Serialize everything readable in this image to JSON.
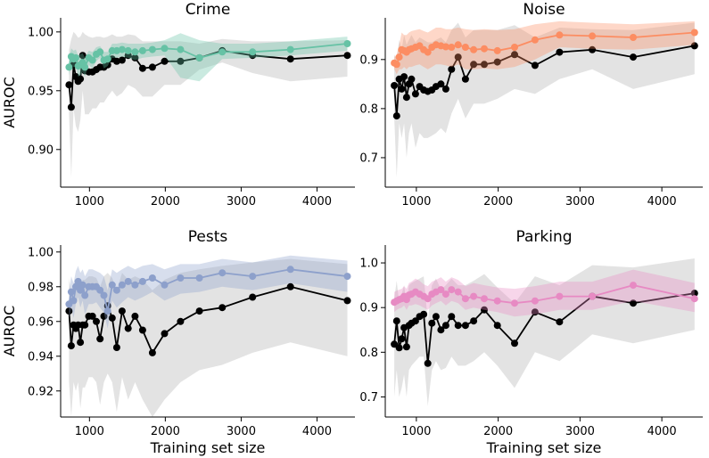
{
  "chart_data": [
    {
      "type": "line",
      "title": "Crime",
      "xlabel": "",
      "ylabel": "AUROC",
      "xlim": [
        620,
        4500
      ],
      "ylim": [
        0.868,
        1.012
      ],
      "xticks": [
        1000,
        2000,
        3000,
        4000
      ],
      "yticks": [
        0.9,
        0.95,
        1.0
      ],
      "ytick_labels": [
        "0.90",
        "0.95",
        "1.00"
      ],
      "color": "#66c2a5",
      "x": [
        730,
        760,
        790,
        820,
        850,
        880,
        910,
        940,
        990,
        1040,
        1090,
        1140,
        1190,
        1240,
        1300,
        1360,
        1430,
        1510,
        1600,
        1700,
        1830,
        1990,
        2200,
        2450,
        2750,
        3150,
        3650,
        4400
      ],
      "series": [
        {
          "values": [
            0.97,
            0.979,
            0.977,
            0.978,
            0.971,
            0.972,
            0.974,
            0.97,
            0.978,
            0.976,
            0.981,
            0.983,
            0.976,
            0.977,
            0.984,
            0.984,
            0.985,
            0.984,
            0.983,
            0.984,
            0.985,
            0.986,
            0.985,
            0.978,
            0.983,
            0.983,
            0.985,
            0.99
          ],
          "lower": [
            0.963,
            0.972,
            0.97,
            0.971,
            0.962,
            0.963,
            0.966,
            0.962,
            0.972,
            0.969,
            0.975,
            0.978,
            0.969,
            0.971,
            0.978,
            0.978,
            0.979,
            0.978,
            0.976,
            0.978,
            0.979,
            0.98,
            0.961,
            0.958,
            0.977,
            0.978,
            0.98,
            0.984
          ],
          "upper": [
            0.978,
            0.986,
            0.984,
            0.985,
            0.98,
            0.981,
            0.982,
            0.978,
            0.984,
            0.983,
            0.987,
            0.988,
            0.983,
            0.983,
            0.99,
            0.99,
            0.991,
            0.99,
            0.99,
            0.99,
            0.991,
            0.993,
            0.999,
            0.993,
            0.99,
            0.99,
            0.992,
            0.996
          ]
        },
        {
          "values": [
            0.955,
            0.936,
            0.972,
            0.962,
            0.958,
            0.96,
            0.98,
            0.967,
            0.966,
            0.966,
            0.968,
            0.97,
            0.97,
            0.972,
            0.977,
            0.975,
            0.976,
            0.98,
            0.978,
            0.969,
            0.97,
            0.975,
            0.975,
            0.978,
            0.984,
            0.98,
            0.977,
            0.98
          ],
          "lower": [
            0.93,
            0.876,
            0.935,
            0.92,
            0.915,
            0.925,
            0.95,
            0.93,
            0.93,
            0.935,
            0.935,
            0.94,
            0.94,
            0.945,
            0.95,
            0.945,
            0.948,
            0.955,
            0.952,
            0.945,
            0.945,
            0.955,
            0.955,
            0.968,
            0.974,
            0.965,
            0.958,
            0.962
          ],
          "upper": [
            0.985,
            0.994,
            1.0,
            0.998,
            0.995,
            0.996,
            1.0,
            0.998,
            0.996,
            0.995,
            0.996,
            0.996,
            0.995,
            0.996,
            0.998,
            0.996,
            0.996,
            0.998,
            0.997,
            0.992,
            0.992,
            0.992,
            0.992,
            0.99,
            0.994,
            0.992,
            0.992,
            0.993
          ]
        }
      ]
    },
    {
      "type": "line",
      "title": "Noise",
      "xlabel": "",
      "ylabel": "",
      "xlim": [
        620,
        4500
      ],
      "ylim": [
        0.64,
        0.985
      ],
      "xticks": [
        1000,
        2000,
        3000,
        4000
      ],
      "yticks": [
        0.7,
        0.8,
        0.9
      ],
      "ytick_labels": [
        "0.7",
        "0.8",
        "0.9"
      ],
      "color": "#fc8d62",
      "x": [
        730,
        760,
        790,
        820,
        850,
        880,
        910,
        940,
        990,
        1040,
        1090,
        1140,
        1190,
        1240,
        1300,
        1360,
        1430,
        1510,
        1600,
        1700,
        1830,
        1990,
        2200,
        2450,
        2750,
        3150,
        3650,
        4400
      ],
      "series": [
        {
          "values": [
            0.893,
            0.89,
            0.905,
            0.92,
            0.918,
            0.915,
            0.92,
            0.922,
            0.925,
            0.928,
            0.92,
            0.915,
            0.925,
            0.93,
            0.928,
            0.926,
            0.925,
            0.93,
            0.925,
            0.92,
            0.922,
            0.918,
            0.925,
            0.94,
            0.95,
            0.948,
            0.945,
            0.955
          ],
          "lower": [
            0.88,
            0.87,
            0.88,
            0.88,
            0.885,
            0.88,
            0.885,
            0.885,
            0.888,
            0.89,
            0.885,
            0.88,
            0.885,
            0.89,
            0.89,
            0.888,
            0.885,
            0.89,
            0.88,
            0.88,
            0.882,
            0.88,
            0.885,
            0.9,
            0.925,
            0.922,
            0.92,
            0.93
          ],
          "upper": [
            0.905,
            0.91,
            0.93,
            0.955,
            0.95,
            0.95,
            0.955,
            0.958,
            0.96,
            0.962,
            0.958,
            0.955,
            0.96,
            0.965,
            0.965,
            0.962,
            0.962,
            0.965,
            0.962,
            0.96,
            0.962,
            0.96,
            0.962,
            0.972,
            0.978,
            0.975,
            0.972,
            0.978
          ]
        },
        {
          "values": [
            0.847,
            0.785,
            0.86,
            0.84,
            0.865,
            0.823,
            0.85,
            0.86,
            0.83,
            0.845,
            0.838,
            0.835,
            0.838,
            0.845,
            0.85,
            0.84,
            0.88,
            0.905,
            0.86,
            0.89,
            0.89,
            0.895,
            0.91,
            0.888,
            0.915,
            0.92,
            0.905,
            0.928
          ],
          "lower": [
            0.78,
            0.66,
            0.77,
            0.74,
            0.77,
            0.7,
            0.75,
            0.77,
            0.72,
            0.75,
            0.74,
            0.74,
            0.745,
            0.75,
            0.76,
            0.75,
            0.79,
            0.82,
            0.78,
            0.81,
            0.81,
            0.82,
            0.84,
            0.83,
            0.86,
            0.88,
            0.84,
            0.87
          ],
          "upper": [
            0.91,
            0.9,
            0.94,
            0.92,
            0.95,
            0.93,
            0.94,
            0.95,
            0.935,
            0.945,
            0.94,
            0.935,
            0.935,
            0.94,
            0.945,
            0.935,
            0.96,
            0.975,
            0.945,
            0.96,
            0.96,
            0.96,
            0.97,
            0.945,
            0.965,
            0.962,
            0.96,
            0.975
          ]
        }
      ]
    },
    {
      "type": "line",
      "title": "Pests",
      "xlabel": "Training set size",
      "ylabel": "AUROC",
      "xlim": [
        620,
        4500
      ],
      "ylim": [
        0.905,
        1.004
      ],
      "xticks": [
        1000,
        2000,
        3000,
        4000
      ],
      "yticks": [
        0.92,
        0.94,
        0.96,
        0.98,
        1.0
      ],
      "ytick_labels": [
        "0.92",
        "0.94",
        "0.96",
        "0.98",
        "1.00"
      ],
      "color": "#8da0cb",
      "x": [
        730,
        760,
        790,
        820,
        850,
        880,
        910,
        940,
        990,
        1040,
        1090,
        1140,
        1190,
        1240,
        1300,
        1360,
        1430,
        1510,
        1600,
        1700,
        1830,
        1990,
        2200,
        2450,
        2750,
        3150,
        3650,
        4400
      ],
      "series": [
        {
          "values": [
            0.97,
            0.977,
            0.972,
            0.98,
            0.983,
            0.978,
            0.981,
            0.975,
            0.98,
            0.98,
            0.98,
            0.978,
            0.975,
            0.966,
            0.981,
            0.978,
            0.981,
            0.983,
            0.981,
            0.983,
            0.985,
            0.981,
            0.985,
            0.985,
            0.988,
            0.986,
            0.99,
            0.986
          ],
          "lower": [
            0.962,
            0.968,
            0.962,
            0.97,
            0.974,
            0.968,
            0.972,
            0.964,
            0.97,
            0.97,
            0.971,
            0.968,
            0.965,
            0.956,
            0.972,
            0.968,
            0.971,
            0.974,
            0.972,
            0.974,
            0.977,
            0.972,
            0.976,
            0.977,
            0.98,
            0.978,
            0.982,
            0.977
          ],
          "upper": [
            0.978,
            0.986,
            0.982,
            0.989,
            0.992,
            0.988,
            0.99,
            0.986,
            0.99,
            0.99,
            0.989,
            0.988,
            0.986,
            0.978,
            0.99,
            0.988,
            0.99,
            0.992,
            0.99,
            0.992,
            0.993,
            0.99,
            0.993,
            0.993,
            0.996,
            0.994,
            0.998,
            0.995
          ]
        },
        {
          "values": [
            0.966,
            0.946,
            0.958,
            0.956,
            0.958,
            0.948,
            0.958,
            0.958,
            0.963,
            0.963,
            0.96,
            0.95,
            0.963,
            0.969,
            0.962,
            0.945,
            0.966,
            0.956,
            0.963,
            0.955,
            0.942,
            0.953,
            0.96,
            0.966,
            0.968,
            0.974,
            0.98,
            0.972
          ],
          "lower": [
            0.925,
            0.905,
            0.925,
            0.92,
            0.925,
            0.91,
            0.922,
            0.922,
            0.928,
            0.928,
            0.925,
            0.912,
            0.925,
            0.93,
            0.925,
            0.908,
            0.928,
            0.915,
            0.925,
            0.915,
            0.905,
            0.915,
            0.925,
            0.932,
            0.935,
            0.942,
            0.948,
            0.94
          ],
          "upper": [
            0.985,
            0.975,
            0.982,
            0.982,
            0.984,
            0.978,
            0.984,
            0.984,
            0.986,
            0.986,
            0.985,
            0.98,
            0.986,
            0.988,
            0.985,
            0.978,
            0.988,
            0.984,
            0.986,
            0.984,
            0.978,
            0.984,
            0.988,
            0.99,
            0.992,
            0.994,
            0.996,
            0.993
          ]
        }
      ]
    },
    {
      "type": "line",
      "title": "Parking",
      "xlabel": "Training set size",
      "ylabel": "",
      "xlim": [
        620,
        4500
      ],
      "ylim": [
        0.655,
        1.04
      ],
      "xticks": [
        1000,
        2000,
        3000,
        4000
      ],
      "yticks": [
        0.7,
        0.8,
        0.9,
        1.0
      ],
      "ytick_labels": [
        "0.7",
        "0.8",
        "0.9",
        "1.0"
      ],
      "color": "#e78ac3",
      "x": [
        730,
        760,
        790,
        820,
        850,
        880,
        910,
        940,
        990,
        1040,
        1090,
        1140,
        1190,
        1240,
        1300,
        1360,
        1430,
        1510,
        1600,
        1700,
        1830,
        1990,
        2200,
        2450,
        2750,
        3150,
        3650,
        4400
      ],
      "series": [
        {
          "values": [
            0.912,
            0.915,
            0.918,
            0.92,
            0.925,
            0.918,
            0.928,
            0.93,
            0.935,
            0.93,
            0.925,
            0.92,
            0.93,
            0.935,
            0.94,
            0.93,
            0.94,
            0.935,
            0.92,
            0.925,
            0.92,
            0.915,
            0.91,
            0.915,
            0.925,
            0.925,
            0.95,
            0.92
          ],
          "lower": [
            0.89,
            0.895,
            0.898,
            0.9,
            0.905,
            0.895,
            0.905,
            0.905,
            0.908,
            0.905,
            0.9,
            0.895,
            0.905,
            0.91,
            0.915,
            0.905,
            0.915,
            0.91,
            0.895,
            0.9,
            0.895,
            0.89,
            0.88,
            0.885,
            0.895,
            0.895,
            0.915,
            0.89
          ],
          "upper": [
            0.935,
            0.938,
            0.94,
            0.942,
            0.948,
            0.942,
            0.955,
            0.958,
            0.965,
            0.96,
            0.952,
            0.948,
            0.958,
            0.962,
            0.968,
            0.958,
            0.968,
            0.962,
            0.948,
            0.955,
            0.95,
            0.945,
            0.942,
            0.948,
            0.958,
            0.958,
            0.985,
            0.955
          ]
        },
        {
          "values": [
            0.818,
            0.87,
            0.81,
            0.83,
            0.855,
            0.812,
            0.86,
            0.865,
            0.87,
            0.88,
            0.885,
            0.775,
            0.865,
            0.88,
            0.85,
            0.86,
            0.88,
            0.86,
            0.86,
            0.87,
            0.895,
            0.86,
            0.82,
            0.89,
            0.868,
            0.925,
            0.91,
            0.932
          ],
          "lower": [
            0.7,
            0.76,
            0.7,
            0.72,
            0.75,
            0.7,
            0.76,
            0.77,
            0.78,
            0.79,
            0.79,
            0.68,
            0.76,
            0.78,
            0.76,
            0.765,
            0.79,
            0.77,
            0.77,
            0.78,
            0.8,
            0.77,
            0.72,
            0.8,
            0.78,
            0.84,
            0.82,
            0.85
          ],
          "upper": [
            0.92,
            0.96,
            0.91,
            0.93,
            0.95,
            0.91,
            0.95,
            0.955,
            0.96,
            0.965,
            0.97,
            0.87,
            0.95,
            0.965,
            0.94,
            0.95,
            0.965,
            0.95,
            0.95,
            0.96,
            0.975,
            0.945,
            0.91,
            0.97,
            0.95,
            0.995,
            0.99,
            1.01
          ]
        }
      ]
    }
  ]
}
